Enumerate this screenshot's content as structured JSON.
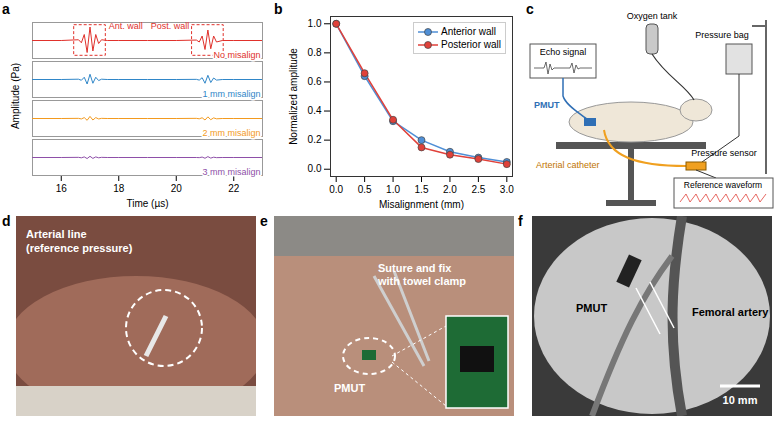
{
  "chart_data": [
    {
      "panel": "a",
      "type": "line",
      "x_label": "Time (µs)",
      "y_label": "Amplitude (Pa)",
      "x": [
        15,
        16,
        16.6,
        16.7,
        16.8,
        16.9,
        17,
        17.1,
        17.2,
        17.3,
        17.4,
        17.6,
        18,
        19,
        20,
        20.7,
        20.8,
        20.9,
        21,
        21.1,
        21.2,
        21.3,
        21.4,
        21.6,
        22,
        23
      ],
      "series": [
        {
          "name": "No misalign",
          "color": "#e0312b",
          "values": [
            0,
            0,
            0.05,
            -0.15,
            0.4,
            -0.8,
            0.9,
            -0.7,
            0.4,
            -0.2,
            0.05,
            0,
            0,
            0,
            0,
            0.03,
            -0.1,
            0.3,
            -0.6,
            0.7,
            -0.55,
            0.3,
            -0.1,
            0,
            0,
            0
          ]
        },
        {
          "name": "1 mm misalign",
          "color": "#2f86c8",
          "values": [
            0,
            0,
            0.02,
            -0.05,
            0.15,
            -0.3,
            0.35,
            -0.25,
            0.15,
            -0.07,
            0.02,
            0,
            0,
            0,
            0,
            0.01,
            -0.04,
            0.12,
            -0.25,
            0.28,
            -0.2,
            0.1,
            -0.04,
            0,
            0,
            0
          ]
        },
        {
          "name": "2 mm misalign",
          "color": "#f39a1e",
          "values": [
            0,
            0,
            0.01,
            -0.03,
            0.06,
            -0.12,
            0.14,
            -0.1,
            0.06,
            -0.03,
            0.01,
            0,
            0,
            0,
            0,
            0.01,
            -0.02,
            0.05,
            -0.1,
            0.11,
            -0.08,
            0.04,
            -0.02,
            0,
            0,
            0
          ]
        },
        {
          "name": "3 mm misalign",
          "color": "#8e4fa8",
          "values": [
            0,
            0,
            0.01,
            -0.02,
            0.04,
            -0.07,
            0.08,
            -0.06,
            0.04,
            -0.02,
            0.01,
            0,
            0,
            0,
            0,
            0,
            -0.01,
            0.03,
            -0.05,
            0.06,
            -0.04,
            0.02,
            -0.01,
            0,
            0,
            0
          ]
        }
      ],
      "xlim": [
        15,
        23
      ],
      "xticks": [
        16,
        18,
        20,
        22
      ],
      "ylim": [
        -1.2,
        1.2
      ],
      "tick_labels": "x",
      "annotations": [
        {
          "text": "Ant. wall",
          "x": 17
        },
        {
          "text": "Post. wall",
          "x": 21.1
        }
      ]
    },
    {
      "panel": "b",
      "type": "line",
      "x_label": "Misalignment (mm)",
      "y_label": "Normalized amplitude",
      "x": [
        0,
        0.5,
        1,
        1.5,
        2,
        2.5,
        3
      ],
      "series": [
        {
          "name": "Anterior wall",
          "color": "#4f8fd6",
          "marker": "circle",
          "values": [
            1,
            0.64,
            0.33,
            0.2,
            0.12,
            0.08,
            0.05
          ]
        },
        {
          "name": "Posterior wall",
          "color": "#e0413a",
          "marker": "circle",
          "values": [
            1,
            0.66,
            0.34,
            0.15,
            0.1,
            0.07,
            0.035
          ]
        }
      ],
      "xlim": [
        -0.1,
        3.1
      ],
      "xticks": [
        {
          "value": 0,
          "label": "0.0"
        },
        {
          "value": 0.5,
          "label": "0.5"
        },
        {
          "value": 1,
          "label": "1.0"
        },
        {
          "value": 1.5,
          "label": "1.5"
        },
        {
          "value": 2,
          "label": "2.0"
        },
        {
          "value": 2.5,
          "label": "2.5"
        },
        {
          "value": 3,
          "label": "3.0"
        }
      ],
      "ylim": [
        -0.05,
        1.05
      ],
      "yticks": [
        {
          "value": 0,
          "label": "0.0"
        },
        {
          "value": 0.2,
          "label": "0.2"
        },
        {
          "value": 0.4,
          "label": "0.4"
        },
        {
          "value": 0.6,
          "label": "0.6"
        },
        {
          "value": 0.8,
          "label": "0.8"
        },
        {
          "value": 1,
          "label": "1.0"
        }
      ],
      "legend": "top-right"
    }
  ],
  "panels": {
    "c": {
      "letter": "c",
      "labels": {
        "oxygen_tank": "Oxygen tank",
        "pressure_bag": "Pressure bag",
        "echo_signal": "Echo signal",
        "pmut": "PMUT",
        "arterial_catheter": "Arterial catheter",
        "pressure_sensor": "Pressure sensor",
        "reference_waveform": "Reference waveform"
      }
    },
    "d": {
      "letter": "d",
      "labels": {
        "arterial_line": [
          "Arterial line",
          "(reference pressure)"
        ]
      }
    },
    "e": {
      "letter": "e",
      "labels": {
        "suture": [
          "Suture and fix",
          "with towel clamp"
        ],
        "pmut": "PMUT"
      }
    },
    "f": {
      "letter": "f",
      "labels": {
        "pmut": "PMUT",
        "femoral_artery": "Femoral artery",
        "scale_bar": "10 mm"
      }
    }
  }
}
